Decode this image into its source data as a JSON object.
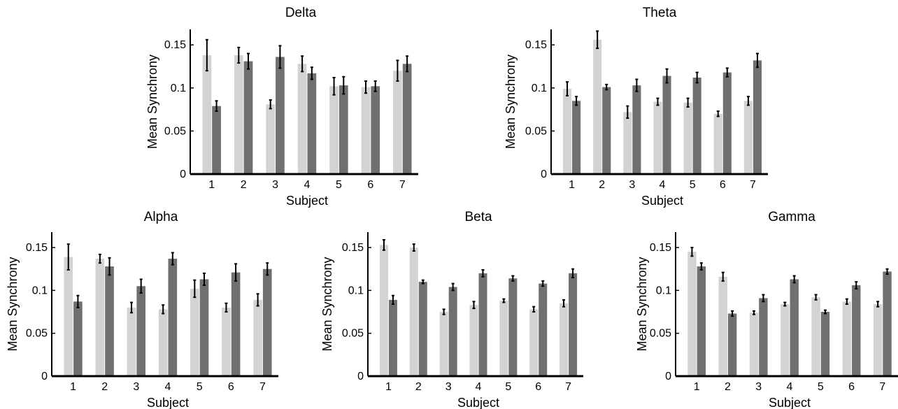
{
  "figure": {
    "colors": {
      "light_bar": "#d3d3d3",
      "dark_bar": "#707070",
      "axis": "#000000",
      "error_bar": "#000000"
    }
  },
  "chart_data": [
    {
      "type": "bar",
      "title": "Delta",
      "xlabel": "Subject",
      "ylabel": "Mean Synchrony",
      "categories": [
        "1",
        "2",
        "3",
        "4",
        "5",
        "6",
        "7"
      ],
      "yticks": [
        "0",
        "0.05",
        "0.1",
        "0.15"
      ],
      "ylim": [
        0,
        0.168
      ],
      "series": [
        {
          "values": [
            0.138,
            0.138,
            0.081,
            0.128,
            0.102,
            0.101,
            0.12
          ],
          "errors": [
            0.018,
            0.009,
            0.005,
            0.009,
            0.01,
            0.007,
            0.012
          ]
        },
        {
          "values": [
            0.079,
            0.131,
            0.136,
            0.117,
            0.103,
            0.102,
            0.128
          ],
          "errors": [
            0.006,
            0.009,
            0.013,
            0.007,
            0.01,
            0.006,
            0.009
          ]
        }
      ]
    },
    {
      "type": "bar",
      "title": "Theta",
      "xlabel": "Subject",
      "ylabel": "Mean Synchrony",
      "categories": [
        "1",
        "2",
        "3",
        "4",
        "5",
        "6",
        "7"
      ],
      "yticks": [
        "0",
        "0.05",
        "0.1",
        "0.15"
      ],
      "ylim": [
        0,
        0.168
      ],
      "series": [
        {
          "values": [
            0.099,
            0.156,
            0.072,
            0.084,
            0.083,
            0.07,
            0.085
          ],
          "errors": [
            0.008,
            0.01,
            0.007,
            0.004,
            0.005,
            0.003,
            0.005
          ]
        },
        {
          "values": [
            0.085,
            0.101,
            0.103,
            0.114,
            0.112,
            0.118,
            0.132
          ],
          "errors": [
            0.005,
            0.003,
            0.007,
            0.008,
            0.006,
            0.005,
            0.008
          ]
        }
      ]
    },
    {
      "type": "bar",
      "title": "Alpha",
      "xlabel": "Subject",
      "ylabel": "Mean Synchrony",
      "categories": [
        "1",
        "2",
        "3",
        "4",
        "5",
        "6",
        "7"
      ],
      "yticks": [
        "0",
        "0.05",
        "0.1",
        "0.15"
      ],
      "ylim": [
        0,
        0.168
      ],
      "series": [
        {
          "values": [
            0.139,
            0.137,
            0.08,
            0.078,
            0.102,
            0.08,
            0.089
          ],
          "errors": [
            0.015,
            0.005,
            0.006,
            0.005,
            0.01,
            0.005,
            0.007
          ]
        },
        {
          "values": [
            0.087,
            0.128,
            0.105,
            0.137,
            0.113,
            0.121,
            0.125
          ],
          "errors": [
            0.007,
            0.01,
            0.008,
            0.007,
            0.007,
            0.01,
            0.007
          ]
        }
      ]
    },
    {
      "type": "bar",
      "title": "Beta",
      "xlabel": "Subject",
      "ylabel": "Mean Synchrony",
      "categories": [
        "1",
        "2",
        "3",
        "4",
        "5",
        "6",
        "7"
      ],
      "yticks": [
        "0",
        "0.05",
        "0.1",
        "0.15"
      ],
      "ylim": [
        0,
        0.168
      ],
      "series": [
        {
          "values": [
            0.153,
            0.15,
            0.075,
            0.083,
            0.088,
            0.078,
            0.085
          ],
          "errors": [
            0.006,
            0.004,
            0.003,
            0.004,
            0.002,
            0.003,
            0.004
          ]
        },
        {
          "values": [
            0.089,
            0.11,
            0.104,
            0.12,
            0.114,
            0.108,
            0.12
          ],
          "errors": [
            0.005,
            0.002,
            0.004,
            0.004,
            0.003,
            0.003,
            0.005
          ]
        }
      ]
    },
    {
      "type": "bar",
      "title": "Gamma",
      "xlabel": "Subject",
      "ylabel": "Mean Synchrony",
      "categories": [
        "1",
        "2",
        "3",
        "4",
        "5",
        "6",
        "7"
      ],
      "yticks": [
        "0",
        "0.05",
        "0.1",
        "0.15"
      ],
      "ylim": [
        0,
        0.168
      ],
      "series": [
        {
          "values": [
            0.145,
            0.116,
            0.074,
            0.084,
            0.092,
            0.087,
            0.084
          ],
          "errors": [
            0.005,
            0.005,
            0.002,
            0.002,
            0.003,
            0.003,
            0.003
          ]
        },
        {
          "values": [
            0.128,
            0.073,
            0.091,
            0.113,
            0.075,
            0.106,
            0.122
          ],
          "errors": [
            0.004,
            0.003,
            0.004,
            0.004,
            0.002,
            0.004,
            0.003
          ]
        }
      ]
    }
  ]
}
